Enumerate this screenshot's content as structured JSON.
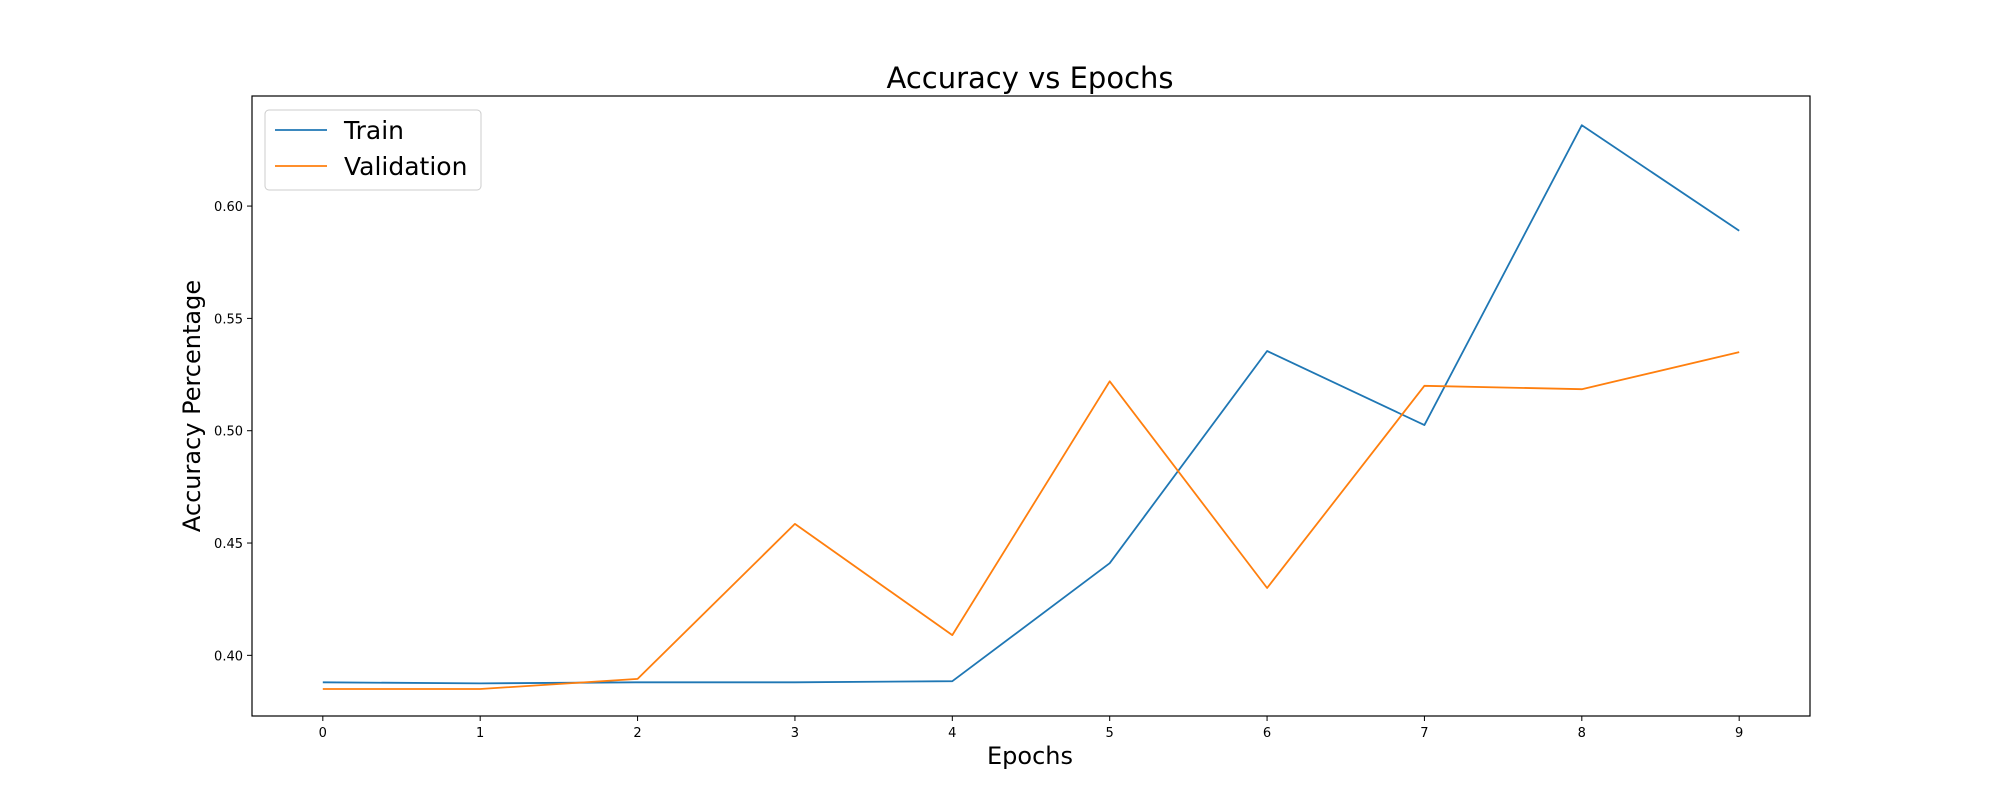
{
  "chart_data": {
    "type": "line",
    "title": "Accuracy vs Epochs",
    "xlabel": "Epochs",
    "ylabel": "Accuracy Percentage",
    "x": [
      0,
      1,
      2,
      3,
      4,
      5,
      6,
      7,
      8,
      9
    ],
    "xlim": [
      -0.45,
      9.45
    ],
    "ylim": [
      0.373,
      0.649
    ],
    "xticks": [
      0,
      1,
      2,
      3,
      4,
      5,
      6,
      7,
      8,
      9
    ],
    "yticks": [
      0.4,
      0.45,
      0.5,
      0.55,
      0.6
    ],
    "ytick_labels": [
      "0.40",
      "0.45",
      "0.50",
      "0.55",
      "0.60"
    ],
    "grid": false,
    "legend_position": "top-left",
    "series": [
      {
        "name": "Train",
        "color": "#1f77b4",
        "values": [
          0.388,
          0.3875,
          0.388,
          0.388,
          0.3885,
          0.441,
          0.5355,
          0.5025,
          0.636,
          0.589
        ]
      },
      {
        "name": "Validation",
        "color": "#ff7f0e",
        "values": [
          0.385,
          0.385,
          0.3895,
          0.4585,
          0.409,
          0.522,
          0.43,
          0.52,
          0.5185,
          0.535
        ]
      }
    ]
  }
}
